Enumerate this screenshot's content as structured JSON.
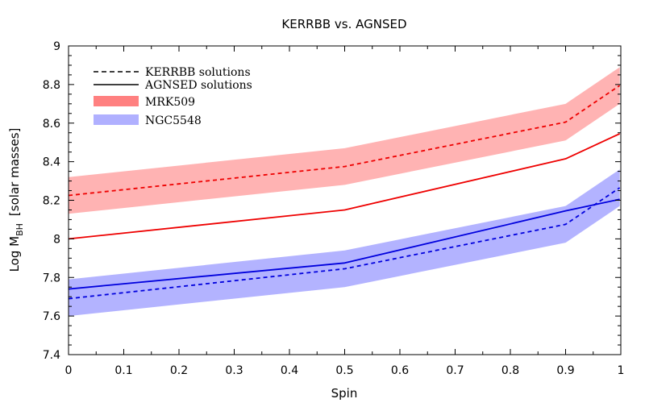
{
  "chart_data": {
    "type": "line",
    "title": "KERRBB vs. AGNSED",
    "xlabel": "Spin",
    "ylabel_main": "Log M",
    "ylabel_sub": "BH",
    "ylabel_rest": "[solar masses]",
    "xlim": [
      0,
      1
    ],
    "ylim": [
      7.4,
      9
    ],
    "x_ticks": [
      0,
      0.1,
      0.2,
      0.3,
      0.4,
      0.5,
      0.6,
      0.7,
      0.8,
      0.9,
      1
    ],
    "x_tick_labels": [
      "0",
      "0.1",
      "0.2",
      "0.3",
      "0.4",
      "0.5",
      "0.6",
      "0.7",
      "0.8",
      "0.9",
      "1"
    ],
    "y_ticks": [
      7.4,
      7.6,
      7.8,
      8,
      8.2,
      8.4,
      8.6,
      8.8,
      9
    ],
    "y_tick_labels": [
      "7.4",
      "7.6",
      "7.8",
      "8",
      "8.2",
      "8.4",
      "8.6",
      "8.8",
      "9"
    ],
    "x": [
      0,
      0.5,
      0.9,
      0.998
    ],
    "bands": [
      {
        "name": "MRK509",
        "color": "#ff8080",
        "opacity": 0.6,
        "upper": [
          8.32,
          8.47,
          8.7,
          8.89
        ],
        "lower": [
          8.13,
          8.28,
          8.51,
          8.7
        ]
      },
      {
        "name": "NGC5548",
        "color": "#8080ff",
        "opacity": 0.6,
        "upper": [
          7.79,
          7.94,
          8.17,
          8.36
        ],
        "lower": [
          7.6,
          7.75,
          7.98,
          8.17
        ]
      }
    ],
    "series": [
      {
        "name": "MRK509 KERRBB",
        "color": "#ee0000",
        "dash": true,
        "values": [
          8.225,
          8.375,
          8.605,
          8.795
        ]
      },
      {
        "name": "MRK509 AGNSED",
        "color": "#ee0000",
        "dash": false,
        "values": [
          8.0,
          8.15,
          8.415,
          8.545
        ]
      },
      {
        "name": "NGC5548 KERRBB",
        "color": "#0000dd",
        "dash": true,
        "values": [
          7.69,
          7.845,
          8.075,
          8.265
        ]
      },
      {
        "name": "NGC5548 AGNSED",
        "color": "#0000dd",
        "dash": false,
        "values": [
          7.74,
          7.875,
          8.145,
          8.205
        ]
      }
    ],
    "legend": {
      "position": "top-left",
      "entries": [
        {
          "label": "KERRBB  solutions",
          "kind": "dashed",
          "color": "#000000"
        },
        {
          "label": "AGNSED  solutions",
          "kind": "solid",
          "color": "#000000"
        },
        {
          "label": "MRK509",
          "kind": "patch",
          "color": "#ff8080"
        },
        {
          "label": "NGC5548",
          "kind": "patch",
          "color": "#b0b0ff"
        }
      ]
    }
  }
}
